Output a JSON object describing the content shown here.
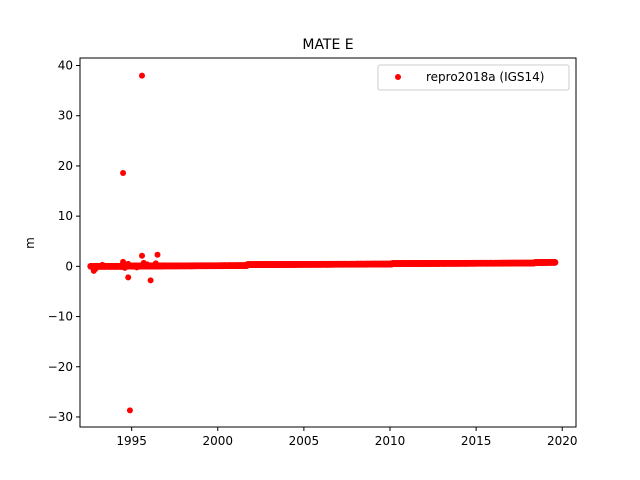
{
  "chart_data": {
    "type": "scatter",
    "title": "MATE E",
    "xlabel": "",
    "ylabel": "m",
    "xlim": [
      1992.0,
      2020.8
    ],
    "ylim": [
      -32.0,
      41.5
    ],
    "xticks": [
      1995,
      2000,
      2005,
      2010,
      2015,
      2020
    ],
    "yticks": [
      -30,
      -20,
      -10,
      0,
      10,
      20,
      30,
      40
    ],
    "ytick_labels": [
      "−30",
      "−20",
      "−10",
      "0",
      "10",
      "20",
      "30",
      "40"
    ],
    "grid": false,
    "legend_position": "top-right",
    "series": [
      {
        "name": "repro2018a (IGS14)",
        "color": "#ff0000",
        "marker": "circle",
        "dense_segments": [
          {
            "x_start": 1992.6,
            "x_end": 1994.5,
            "y_start": 0.0,
            "y_end": 0.0
          },
          {
            "x_start": 1994.5,
            "x_end": 1998.0,
            "y_start": 0.05,
            "y_end": 0.1
          },
          {
            "x_start": 1998.0,
            "x_end": 2001.7,
            "y_start": 0.1,
            "y_end": 0.15
          },
          {
            "x_start": 2001.7,
            "x_end": 2010.1,
            "y_start": 0.35,
            "y_end": 0.45
          },
          {
            "x_start": 2010.1,
            "x_end": 2018.4,
            "y_start": 0.55,
            "y_end": 0.65
          },
          {
            "x_start": 2018.4,
            "x_end": 2019.6,
            "y_start": 0.75,
            "y_end": 0.8
          }
        ],
        "points": [
          {
            "x": 1992.8,
            "y": -0.9
          },
          {
            "x": 1992.9,
            "y": -0.5
          },
          {
            "x": 1993.3,
            "y": 0.3
          },
          {
            "x": 1994.5,
            "y": 18.6
          },
          {
            "x": 1994.5,
            "y": 0.9
          },
          {
            "x": 1994.6,
            "y": -0.3
          },
          {
            "x": 1994.8,
            "y": 0.5
          },
          {
            "x": 1994.8,
            "y": -2.2
          },
          {
            "x": 1994.9,
            "y": -28.7
          },
          {
            "x": 1995.3,
            "y": -0.2
          },
          {
            "x": 1995.6,
            "y": 38.0
          },
          {
            "x": 1995.6,
            "y": 2.1
          },
          {
            "x": 1995.7,
            "y": 0.7
          },
          {
            "x": 1995.9,
            "y": 0.4
          },
          {
            "x": 1996.1,
            "y": -2.8
          },
          {
            "x": 1996.4,
            "y": 0.6
          },
          {
            "x": 1996.5,
            "y": 2.3
          },
          {
            "x": 1996.8,
            "y": 0.2
          }
        ]
      }
    ]
  }
}
